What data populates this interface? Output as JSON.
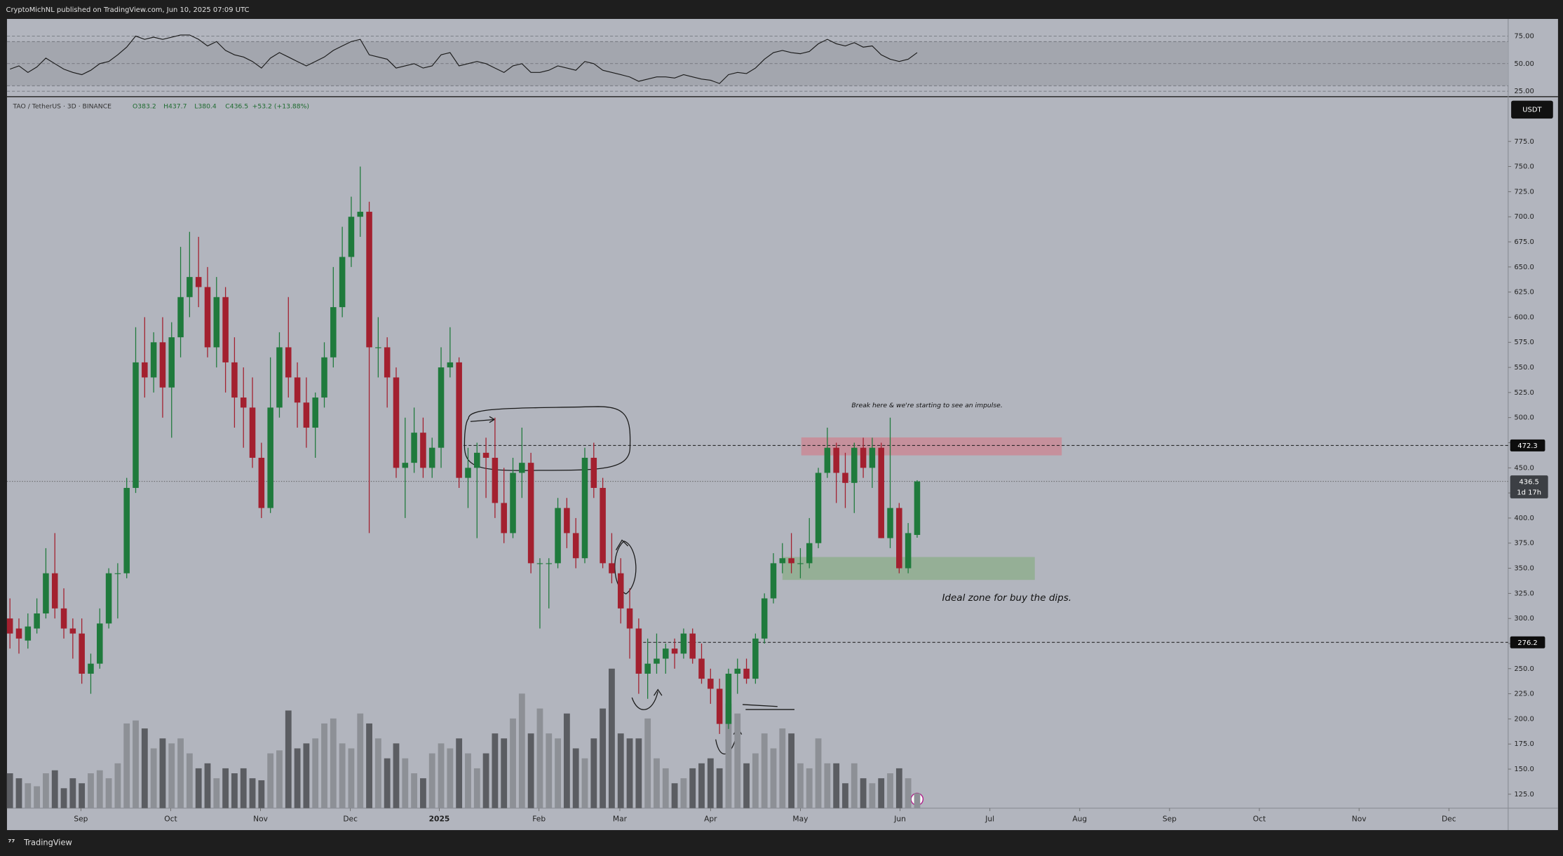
{
  "chart_data": {
    "type": "candlestick",
    "attribution": "CryptoMichNL published on TradingView.com, Jun 10, 2025 07:09 UTC",
    "symbol": "TAO / TetherUS · 3D · BINANCE",
    "ohlc_header": [
      {
        "value": 383.2,
        "label": "O383.2"
      },
      {
        "value": 437.7,
        "label": "H437.7"
      },
      {
        "value": 380.4,
        "label": "L380.4"
      },
      {
        "value": 436.5,
        "label": "C436.5"
      }
    ],
    "change": {
      "value": 53.2,
      "label": "+53.2"
    },
    "change_pct": {
      "value": 13.88,
      "label": "(+13.88%)"
    },
    "currency": "USDT",
    "branding": "TradingView",
    "up_color": "#1f7a3c",
    "down_color": "#a3202f",
    "open": [
      300,
      290,
      278,
      290,
      305,
      345,
      310,
      290,
      285,
      245,
      255,
      295,
      345,
      345,
      430,
      555,
      540,
      575,
      530,
      580,
      620,
      640,
      630,
      570,
      620,
      555,
      520,
      510,
      460,
      410,
      510,
      570,
      540,
      515,
      490,
      520,
      560,
      610,
      660,
      700,
      705,
      570,
      570,
      540,
      450,
      455,
      485,
      450,
      470,
      550,
      555,
      440,
      450,
      465,
      460,
      415,
      385,
      445,
      455,
      355,
      355,
      355,
      410,
      385,
      360,
      460,
      430,
      355,
      345,
      310,
      290,
      245,
      255,
      260,
      270,
      265,
      285,
      260,
      240,
      230,
      195,
      245,
      250,
      240,
      280,
      320,
      355,
      360,
      355,
      355,
      375,
      445,
      470,
      445,
      435,
      470,
      450,
      470,
      380,
      410,
      350,
      383.2
    ],
    "high": [
      320,
      300,
      305,
      320,
      370,
      385,
      330,
      300,
      300,
      265,
      310,
      350,
      355,
      440,
      590,
      600,
      585,
      600,
      595,
      670,
      685,
      680,
      650,
      640,
      630,
      580,
      550,
      540,
      475,
      560,
      585,
      620,
      555,
      540,
      525,
      575,
      650,
      690,
      720,
      750,
      715,
      600,
      580,
      550,
      500,
      510,
      500,
      480,
      570,
      590,
      560,
      470,
      475,
      480,
      500,
      450,
      460,
      490,
      465,
      360,
      360,
      420,
      420,
      400,
      470,
      475,
      440,
      385,
      360,
      330,
      300,
      280,
      285,
      275,
      280,
      290,
      290,
      275,
      250,
      240,
      250,
      260,
      260,
      285,
      325,
      365,
      375,
      385,
      370,
      400,
      450,
      490,
      475,
      465,
      475,
      480,
      480,
      475,
      500,
      415,
      395,
      437.7
    ],
    "low": [
      270,
      265,
      270,
      285,
      300,
      300,
      280,
      260,
      235,
      225,
      250,
      290,
      300,
      340,
      425,
      520,
      525,
      500,
      480,
      560,
      600,
      610,
      560,
      550,
      525,
      490,
      470,
      450,
      400,
      405,
      500,
      520,
      490,
      470,
      460,
      510,
      550,
      600,
      650,
      680,
      385,
      540,
      510,
      440,
      400,
      445,
      440,
      440,
      450,
      540,
      430,
      410,
      380,
      420,
      400,
      375,
      380,
      420,
      345,
      290,
      310,
      350,
      370,
      350,
      355,
      420,
      350,
      335,
      295,
      260,
      225,
      220,
      245,
      245,
      250,
      260,
      255,
      235,
      215,
      185,
      190,
      225,
      235,
      235,
      275,
      315,
      345,
      345,
      340,
      350,
      370,
      440,
      415,
      410,
      405,
      440,
      430,
      380,
      370,
      345,
      345,
      380.4
    ],
    "close": [
      285,
      280,
      292,
      305,
      345,
      310,
      290,
      285,
      245,
      255,
      295,
      345,
      345,
      430,
      555,
      540,
      575,
      530,
      580,
      620,
      640,
      630,
      570,
      620,
      555,
      520,
      510,
      460,
      410,
      510,
      570,
      540,
      515,
      490,
      520,
      560,
      610,
      660,
      700,
      705,
      570,
      570,
      540,
      450,
      455,
      485,
      450,
      470,
      550,
      555,
      440,
      450,
      465,
      460,
      415,
      385,
      445,
      455,
      355,
      355,
      355,
      410,
      385,
      360,
      460,
      430,
      355,
      345,
      310,
      290,
      245,
      255,
      260,
      270,
      265,
      285,
      260,
      240,
      230,
      195,
      245,
      250,
      240,
      280,
      320,
      355,
      360,
      355,
      355,
      375,
      445,
      470,
      445,
      435,
      470,
      450,
      470,
      380,
      410,
      350,
      385,
      436.5
    ],
    "volume": [
      35,
      30,
      25,
      22,
      35,
      38,
      20,
      30,
      25,
      35,
      38,
      30,
      45,
      85,
      88,
      80,
      60,
      70,
      65,
      70,
      55,
      40,
      45,
      30,
      40,
      35,
      40,
      30,
      28,
      55,
      58,
      98,
      60,
      65,
      70,
      85,
      90,
      65,
      60,
      95,
      85,
      70,
      50,
      65,
      50,
      35,
      30,
      55,
      65,
      60,
      70,
      55,
      40,
      55,
      75,
      70,
      90,
      115,
      75,
      100,
      75,
      70,
      95,
      60,
      50,
      70,
      100,
      140,
      75,
      70,
      70,
      90,
      50,
      40,
      25,
      30,
      40,
      45,
      50,
      40,
      105,
      95,
      45,
      55,
      75,
      60,
      80,
      75,
      45,
      40,
      70,
      45,
      45,
      25,
      45,
      30,
      25,
      30,
      35,
      40,
      30,
      15
    ],
    "xlim": [
      -0.33,
      166.8
    ],
    "xticks": [
      {
        "value": 7.9,
        "label": "Sep"
      },
      {
        "value": 17.9,
        "label": "Oct"
      },
      {
        "value": 27.9,
        "label": "Nov"
      },
      {
        "value": 37.9,
        "label": "Dec"
      },
      {
        "value": 47.8,
        "label": "2025"
      },
      {
        "value": 58.9,
        "label": "Feb"
      },
      {
        "value": 67.9,
        "label": "Mar"
      },
      {
        "value": 78.0,
        "label": "Apr"
      },
      {
        "value": 88.0,
        "label": "May"
      },
      {
        "value": 99.1,
        "label": "Jun"
      },
      {
        "value": 109.1,
        "label": "Jul"
      },
      {
        "value": 119.1,
        "label": "Aug"
      },
      {
        "value": 129.1,
        "label": "Sep"
      },
      {
        "value": 139.1,
        "label": "Oct"
      },
      {
        "value": 150.2,
        "label": "Nov"
      },
      {
        "value": 160.2,
        "label": "Dec"
      }
    ],
    "ylim": [
      111.1,
      819.6
    ],
    "yticks": [
      {
        "value": 125,
        "label": "125.0"
      },
      {
        "value": 150,
        "label": "150.0"
      },
      {
        "value": 175,
        "label": "175.0"
      },
      {
        "value": 200,
        "label": "200.0"
      },
      {
        "value": 225,
        "label": "225.0"
      },
      {
        "value": 250,
        "label": "250.0"
      },
      {
        "value": 275,
        "label": "275.0"
      },
      {
        "value": 300,
        "label": "300.0"
      },
      {
        "value": 325,
        "label": "325.0"
      },
      {
        "value": 350,
        "label": "350.0"
      },
      {
        "value": 375,
        "label": "375.0"
      },
      {
        "value": 400,
        "label": "400.0"
      },
      {
        "value": 425,
        "label": "425.0"
      },
      {
        "value": 450,
        "label": "450.0"
      },
      {
        "value": 475,
        "label": "475.0"
      },
      {
        "value": 500,
        "label": "500.0"
      },
      {
        "value": 525,
        "label": "525.0"
      },
      {
        "value": 550,
        "label": "550.0"
      },
      {
        "value": 575,
        "label": "575.0"
      },
      {
        "value": 600,
        "label": "600.0"
      },
      {
        "value": 625,
        "label": "625.0"
      },
      {
        "value": 650,
        "label": "650.0"
      },
      {
        "value": 675,
        "label": "675.0"
      },
      {
        "value": 700,
        "label": "700.0"
      },
      {
        "value": 725,
        "label": "725.0"
      },
      {
        "value": 750,
        "label": "750.0"
      },
      {
        "value": 775,
        "label": "775.0"
      }
    ],
    "price_lines": [
      472.3,
      276.2
    ],
    "last_price": {
      "value": 436.5,
      "countdown": "1d 17h"
    },
    "zones": [
      {
        "x": [
          88.1,
          117.1
        ],
        "y": [
          462.4,
          480.3
        ],
        "color": "#c98a96"
      },
      {
        "x": [
          86.0,
          114.1
        ],
        "y": [
          338.4,
          361.2
        ],
        "color": "#8fae8f"
      }
    ],
    "annotations": [
      "Break here & we're starting to see an impulse.",
      "Ideal zone for buy the dips."
    ],
    "rsi": {
      "values": [
        45,
        48,
        42,
        47,
        55,
        50,
        45,
        42,
        40,
        44,
        50,
        52,
        58,
        65,
        75,
        72,
        74,
        72,
        74,
        76,
        76,
        72,
        66,
        70,
        62,
        58,
        56,
        52,
        46,
        55,
        60,
        56,
        52,
        48,
        52,
        56,
        62,
        66,
        70,
        72,
        58,
        56,
        54,
        46,
        48,
        50,
        46,
        48,
        58,
        60,
        48,
        50,
        52,
        50,
        46,
        42,
        48,
        50,
        42,
        42,
        44,
        48,
        46,
        44,
        52,
        50,
        44,
        42,
        40,
        38,
        34,
        36,
        38,
        38,
        37,
        40,
        38,
        36,
        35,
        32,
        40,
        42,
        41,
        46,
        54,
        60,
        62,
        60,
        59,
        61,
        68,
        72,
        68,
        66,
        69,
        65,
        66,
        58,
        54,
        52,
        54,
        60
      ],
      "ylim": [
        21,
        90.5
      ],
      "yticks": [
        {
          "value": 75,
          "label": "75.00"
        },
        {
          "value": 50,
          "label": "50.00"
        },
        {
          "value": 25,
          "label": "25.00"
        }
      ],
      "band": [
        30,
        70
      ],
      "color": "#1a1a1a"
    }
  }
}
